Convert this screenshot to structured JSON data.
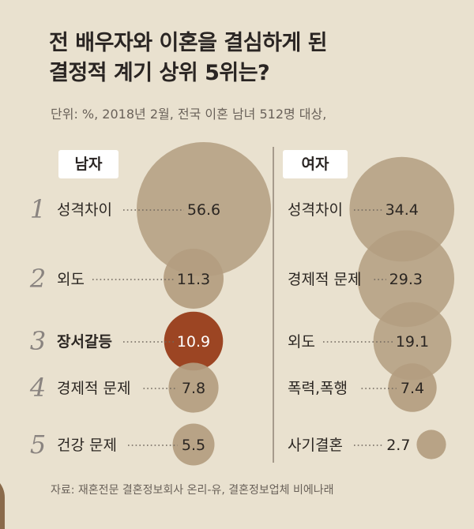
{
  "title_lines": [
    "전 배우자와 이혼을 결심하게 된",
    "결정적 계기 상위 5위는?"
  ],
  "unit_note": "단위: %, 2018년 2월, 전국 이혼 남녀 512명 대상,",
  "source": "자료: 재혼전문 결혼정보회사 온리-유, 결혼정보업체 비에나래",
  "colors": {
    "background": "#e9e1cf",
    "bubble": "#b39d80",
    "highlight": "#9c4523",
    "tag_bg": "#ffffff"
  },
  "chart_data": [
    {
      "type": "bubble",
      "panel_label": "남자",
      "categories": [
        "성격차이",
        "외도",
        "장서갈등",
        "경제적 문제",
        "건강 문제"
      ],
      "ranks": [
        "1",
        "2",
        "3",
        "4",
        "5"
      ],
      "values": [
        56.6,
        11.3,
        10.9,
        7.8,
        5.5
      ],
      "highlight_index": 2
    },
    {
      "type": "bubble",
      "panel_label": "여자",
      "categories": [
        "성격차이",
        "경제적 문제",
        "외도",
        "폭력,폭행",
        "사기결혼"
      ],
      "values": [
        34.4,
        29.3,
        19.1,
        7.4,
        2.7
      ]
    }
  ]
}
